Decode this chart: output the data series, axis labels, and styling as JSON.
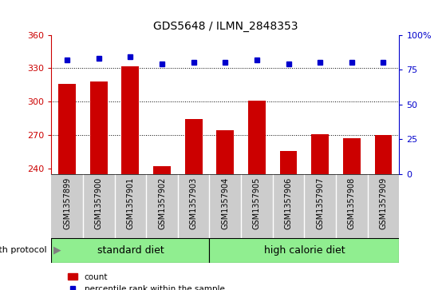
{
  "title": "GDS5648 / ILMN_2848353",
  "samples": [
    "GSM1357899",
    "GSM1357900",
    "GSM1357901",
    "GSM1357902",
    "GSM1357903",
    "GSM1357904",
    "GSM1357905",
    "GSM1357906",
    "GSM1357907",
    "GSM1357908",
    "GSM1357909"
  ],
  "bar_values": [
    316,
    318,
    332,
    242,
    284,
    274,
    301,
    256,
    271,
    267,
    270
  ],
  "percentile_values": [
    82,
    83,
    84,
    79,
    80,
    80,
    82,
    79,
    80,
    80,
    80
  ],
  "ylim_left": [
    235,
    360
  ],
  "ylim_right": [
    0,
    100
  ],
  "yticks_left": [
    240,
    270,
    300,
    330,
    360
  ],
  "yticks_right": [
    0,
    25,
    50,
    75,
    100
  ],
  "bar_color": "#cc0000",
  "dot_color": "#0000cc",
  "grid_ticks": [
    270,
    300,
    330
  ],
  "standard_diet_count": 5,
  "high_calorie_count": 6,
  "group_label_standard": "standard diet",
  "group_label_high": "high calorie diet",
  "growth_protocol_label": "growth protocol",
  "legend_count": "count",
  "legend_percentile": "percentile rank within the sample",
  "xlabel_area_color": "#cccccc",
  "group_box_color": "#90ee90",
  "tick_label_fontsize": 7,
  "bar_width": 0.55,
  "fig_width": 5.59,
  "fig_height": 3.63
}
